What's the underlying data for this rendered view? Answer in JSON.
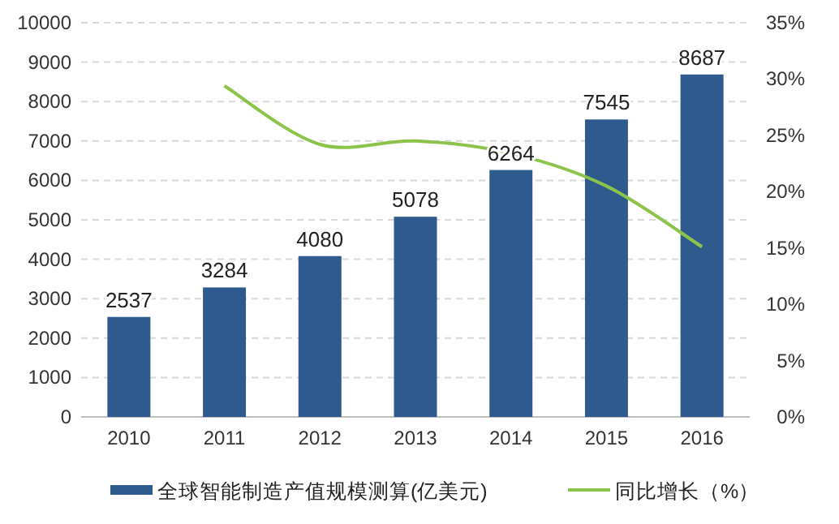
{
  "chart_data": {
    "type": "bar",
    "categories": [
      "2010",
      "2011",
      "2012",
      "2013",
      "2014",
      "2015",
      "2016"
    ],
    "series": [
      {
        "name": "全球智能制造产值规模测算(亿美元)",
        "color": "#2e5a8e",
        "values": [
          2537,
          3284,
          4080,
          5078,
          6264,
          7545,
          8687
        ],
        "data_labels": true
      },
      {
        "name": "同比增长（%）",
        "type": "line",
        "axis": "y2",
        "color": "#8cc34a",
        "values": [
          null,
          29.4,
          24.2,
          24.5,
          23.4,
          20.5,
          15.1
        ]
      }
    ],
    "ylim": [
      0,
      10000
    ],
    "yticks": [
      0,
      1000,
      2000,
      3000,
      4000,
      5000,
      6000,
      7000,
      8000,
      9000,
      10000
    ],
    "y2lim": [
      0,
      35
    ],
    "y2ticks": [
      {
        "value": 0,
        "label": "0%"
      },
      {
        "value": 5,
        "label": "5%"
      },
      {
        "value": 10,
        "label": "10%"
      },
      {
        "value": 15,
        "label": "15%"
      },
      {
        "value": 20,
        "label": "20%"
      },
      {
        "value": 25,
        "label": "25%"
      },
      {
        "value": 30,
        "label": "30%"
      },
      {
        "value": 35,
        "label": "35%"
      }
    ],
    "grid": "y",
    "legend": "bottom",
    "marker": "none"
  }
}
